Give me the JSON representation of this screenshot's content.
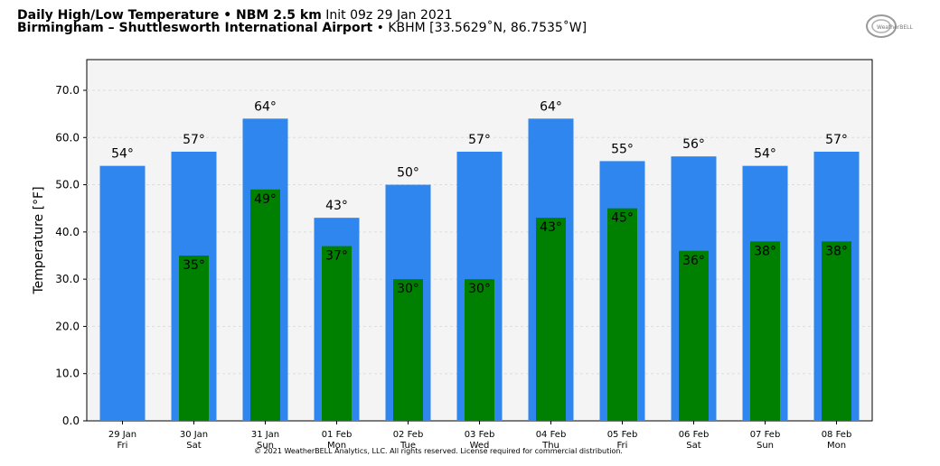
{
  "header": {
    "title_bold": "Daily High/Low Temperature • NBM 2.5 km",
    "title_init": "Init 09z 29 Jan 2021",
    "location_bold": "Birmingham – Shuttlesworth International Airport",
    "location_rest": "• KBHM [33.5629˚N, 86.7535˚W]"
  },
  "logo": {
    "text": "WeatherBELL"
  },
  "footer": "© 2021 WeatherBELL Analytics, LLC. All rights reserved. License required for commercial distribution.",
  "colors": {
    "high": "#2e86ee",
    "low": "#008000",
    "plot_bg": "#f4f4f4",
    "grid": "#dddddd"
  },
  "chart_data": {
    "type": "bar",
    "ylabel": "Temperature [°F]",
    "ylim": [
      0,
      76.5
    ],
    "yticks": [
      "0.0",
      "10.0",
      "20.0",
      "30.0",
      "40.0",
      "50.0",
      "60.0",
      "70.0"
    ],
    "grid": true,
    "categories": [
      {
        "date": "29 Jan",
        "day": "Fri"
      },
      {
        "date": "30 Jan",
        "day": "Sat"
      },
      {
        "date": "31 Jan",
        "day": "Sun"
      },
      {
        "date": "01 Feb",
        "day": "Mon"
      },
      {
        "date": "02 Feb",
        "day": "Tue"
      },
      {
        "date": "03 Feb",
        "day": "Wed"
      },
      {
        "date": "04 Feb",
        "day": "Thu"
      },
      {
        "date": "05 Feb",
        "day": "Fri"
      },
      {
        "date": "06 Feb",
        "day": "Sat"
      },
      {
        "date": "07 Feb",
        "day": "Sun"
      },
      {
        "date": "08 Feb",
        "day": "Mon"
      }
    ],
    "series": [
      {
        "values": [
          54,
          57,
          64,
          43,
          50,
          57,
          64,
          55,
          56,
          54,
          57
        ],
        "labels": [
          "54°",
          "57°",
          "64°",
          "43°",
          "50°",
          "57°",
          "64°",
          "55°",
          "56°",
          "54°",
          "57°"
        ]
      },
      {
        "values": [
          null,
          35,
          49,
          37,
          30,
          30,
          43,
          45,
          36,
          38,
          38
        ],
        "labels": [
          "",
          "35°",
          "49°",
          "37°",
          "30°",
          "30°",
          "43°",
          "45°",
          "36°",
          "38°",
          "38°"
        ]
      }
    ]
  }
}
